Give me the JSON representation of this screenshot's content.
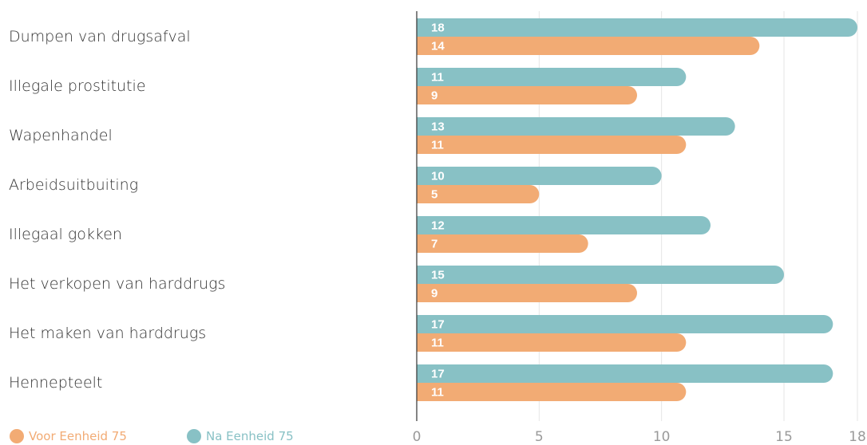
{
  "chart_data": {
    "type": "bar",
    "orientation": "horizontal",
    "categories": [
      "Dumpen van drugsafval",
      "Illegale prostitutie",
      "Wapenhandel",
      "Arbeidsuitbuiting",
      "Illegaal gokken",
      "Het verkopen van harddrugs",
      "Het maken van harddrugs",
      "Hennepteelt"
    ],
    "series": [
      {
        "name": "Na Eenheid 75",
        "color": "#88c1c5",
        "values": [
          18,
          11,
          13,
          10,
          12,
          15,
          17,
          17
        ]
      },
      {
        "name": "Voor Eenheid 75",
        "color": "#f2ab74",
        "values": [
          14,
          9,
          11,
          5,
          7,
          9,
          11,
          11
        ]
      }
    ],
    "xlim": [
      0,
      18
    ],
    "ticks": [
      "0",
      "5",
      "10",
      "15",
      "18"
    ],
    "grid": true,
    "legend": [
      {
        "label": "Voor Eenheid 75",
        "color": "#f2ab74"
      },
      {
        "label": "Na Eenheid 75",
        "color": "#88c1c5"
      }
    ],
    "legend_placement": "bottom-left"
  }
}
